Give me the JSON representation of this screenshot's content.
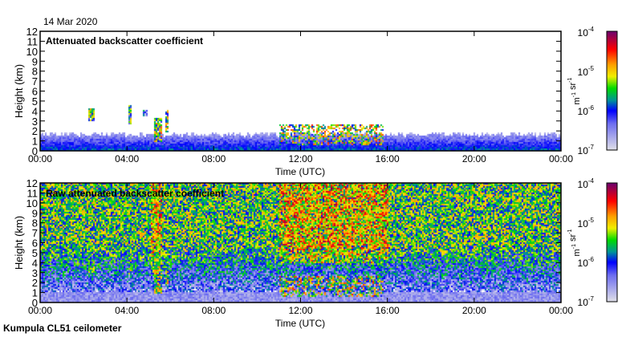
{
  "date_label": "14 Mar 2020",
  "footer_label": "Kumpula CL51 ceilometer",
  "chart_data": [
    {
      "type": "heatmap",
      "title": "Attenuated backscatter coefficient",
      "xlabel": "Time (UTC)",
      "ylabel": "Height (km)",
      "xlim": [
        0,
        24
      ],
      "ylim": [
        0,
        12
      ],
      "x_ticks": [
        "00:00",
        "04:00",
        "08:00",
        "12:00",
        "16:00",
        "20:00",
        "00:00"
      ],
      "y_ticks": [
        "0",
        "1",
        "2",
        "3",
        "4",
        "5",
        "6",
        "7",
        "8",
        "9",
        "10",
        "11",
        "12"
      ],
      "colorbar": {
        "label": "m-1 sr-1",
        "scale": "log",
        "range": [
          -7,
          -4
        ],
        "ticks": [
          "-7",
          "-6",
          "-5",
          "-4"
        ]
      },
      "boundary_layer_top_km": 1.8,
      "features": [
        {
          "t": [
            2.2,
            2.5
          ],
          "h": [
            3.0,
            4.4
          ],
          "peak": -4.8
        },
        {
          "t": [
            4.0,
            4.2
          ],
          "h": [
            2.8,
            4.6
          ],
          "peak": -4.9
        },
        {
          "t": [
            4.7,
            4.9
          ],
          "h": [
            3.6,
            4.2
          ],
          "peak": -5.3
        },
        {
          "t": [
            5.2,
            5.6
          ],
          "h": [
            0.9,
            3.4
          ],
          "peak": -4.6
        },
        {
          "t": [
            5.7,
            5.9
          ],
          "h": [
            2.0,
            4.2
          ],
          "peak": -4.7
        },
        {
          "t": [
            11.0,
            15.8
          ],
          "h": [
            0.6,
            2.8
          ],
          "peak": -4.5
        }
      ]
    },
    {
      "type": "heatmap",
      "title": "Raw attenuated backscatter coefficient",
      "xlabel": "Time (UTC)",
      "ylabel": "Height (km)",
      "xlim": [
        0,
        24
      ],
      "ylim": [
        0,
        12
      ],
      "x_ticks": [
        "00:00",
        "04:00",
        "08:00",
        "12:00",
        "16:00",
        "20:00",
        "00:00"
      ],
      "y_ticks": [
        "0",
        "1",
        "2",
        "3",
        "4",
        "5",
        "6",
        "7",
        "8",
        "9",
        "10",
        "11",
        "12"
      ],
      "colorbar": {
        "label": "m-1 sr-1",
        "scale": "log",
        "range": [
          -7,
          -4
        ],
        "ticks": [
          "-7",
          "-6",
          "-5",
          "-4"
        ]
      },
      "noise_enhanced_period": [
        11.0,
        16.0
      ]
    }
  ]
}
